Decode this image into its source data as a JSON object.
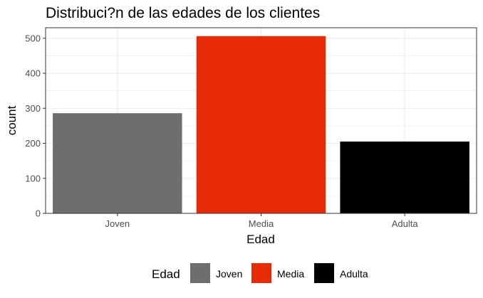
{
  "chart_data": {
    "type": "bar",
    "title": "Distribuci?n de las edades de los clientes",
    "xlabel": "Edad",
    "ylabel": "count",
    "categories": [
      "Joven",
      "Media",
      "Adulta"
    ],
    "values": [
      286,
      506,
      205
    ],
    "colors": [
      "#6e6e6e",
      "#e72b08",
      "#000000"
    ],
    "ylim": [
      0,
      530
    ],
    "yticks": [
      0,
      100,
      200,
      300,
      400,
      500
    ],
    "grid": true,
    "legend": {
      "title": "Edad",
      "position": "bottom",
      "entries": [
        "Joven",
        "Media",
        "Adulta"
      ]
    }
  }
}
